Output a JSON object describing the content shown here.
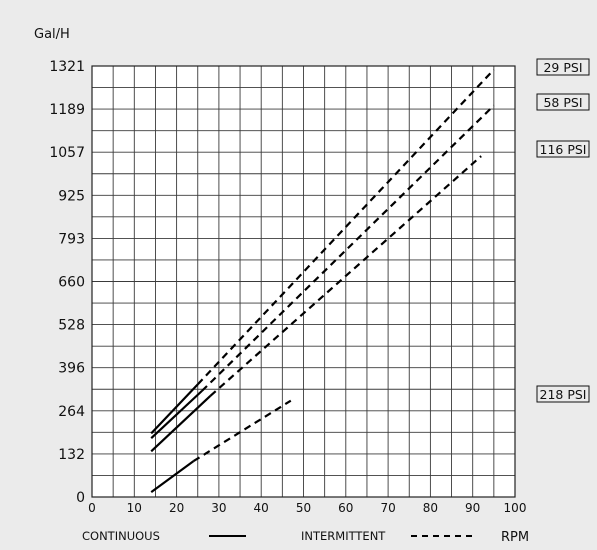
{
  "chart_data": {
    "type": "line",
    "ylabel": "Gal/H",
    "xlabel": "RPM",
    "xlim": [
      0,
      100
    ],
    "ylim": [
      0,
      1321
    ],
    "x_ticks": [
      0,
      10,
      20,
      30,
      40,
      50,
      60,
      70,
      80,
      90,
      100
    ],
    "y_ticks": [
      0,
      132,
      264,
      396,
      528,
      660,
      793,
      925,
      1057,
      1189,
      1321
    ],
    "grid": true,
    "legend": {
      "continuous_label": "CONTINUOUS",
      "intermittent_label": "INTERMITTENT",
      "placement": "bottom"
    },
    "series": [
      {
        "name": "29 PSI",
        "continuous": [
          [
            14,
            195
          ],
          [
            25,
            345
          ]
        ],
        "intermittent": [
          [
            25,
            345
          ],
          [
            95,
            1310
          ]
        ]
      },
      {
        "name": "58 PSI",
        "continuous": [
          [
            14,
            180
          ],
          [
            26,
            325
          ]
        ],
        "intermittent": [
          [
            26,
            325
          ],
          [
            95,
            1200
          ]
        ]
      },
      {
        "name": "116 PSI",
        "continuous": [
          [
            14,
            140
          ],
          [
            28,
            310
          ]
        ],
        "intermittent": [
          [
            28,
            310
          ],
          [
            92,
            1045
          ]
        ]
      },
      {
        "name": "218 PSI",
        "continuous": [
          [
            14,
            15
          ],
          [
            24,
            110
          ]
        ],
        "intermittent": [
          [
            24,
            110
          ],
          [
            47,
            295
          ]
        ]
      }
    ]
  }
}
